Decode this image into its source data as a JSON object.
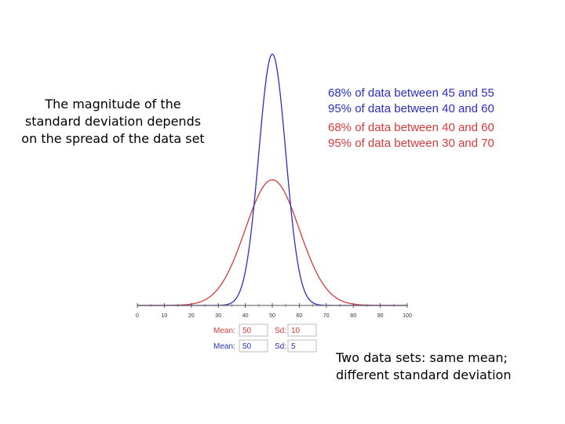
{
  "captions": {
    "left": "The magnitude of the standard deviation depends on the spread of the data set",
    "right": "Two data sets: same mean; different standard deviation"
  },
  "colors": {
    "blue": "#2b2fc4",
    "red": "#d63a3a"
  },
  "chart_data": {
    "type": "line",
    "xlim": [
      0,
      100
    ],
    "x_ticks": [
      "0",
      "10",
      "20",
      "30",
      "40",
      "50",
      "60",
      "70",
      "80",
      "90",
      "100"
    ],
    "grid": false,
    "series": [
      {
        "color": "#d63a3a",
        "mean": 50,
        "sd": 10
      },
      {
        "color": "#2b2fc4",
        "mean": 50,
        "sd": 5
      }
    ],
    "stats": [
      {
        "text": "68% of data between 45 and 55",
        "color": "#2b2fc4"
      },
      {
        "text": "95% of data between 40 and 60",
        "color": "#2b2fc4"
      },
      {
        "text": "68% of data between 40 and 60",
        "color": "#d63a3a"
      },
      {
        "text": "95% of data between 30 and 70",
        "color": "#d63a3a"
      }
    ],
    "controls": [
      {
        "mean_label": "Mean:",
        "mean_value": "50",
        "sd_label": "Sd:",
        "sd_value": "10",
        "color": "#d63a3a"
      },
      {
        "mean_label": "Mean:",
        "mean_value": "50",
        "sd_label": "Sd:",
        "sd_value": "5",
        "color": "#2b2fc4"
      }
    ]
  }
}
